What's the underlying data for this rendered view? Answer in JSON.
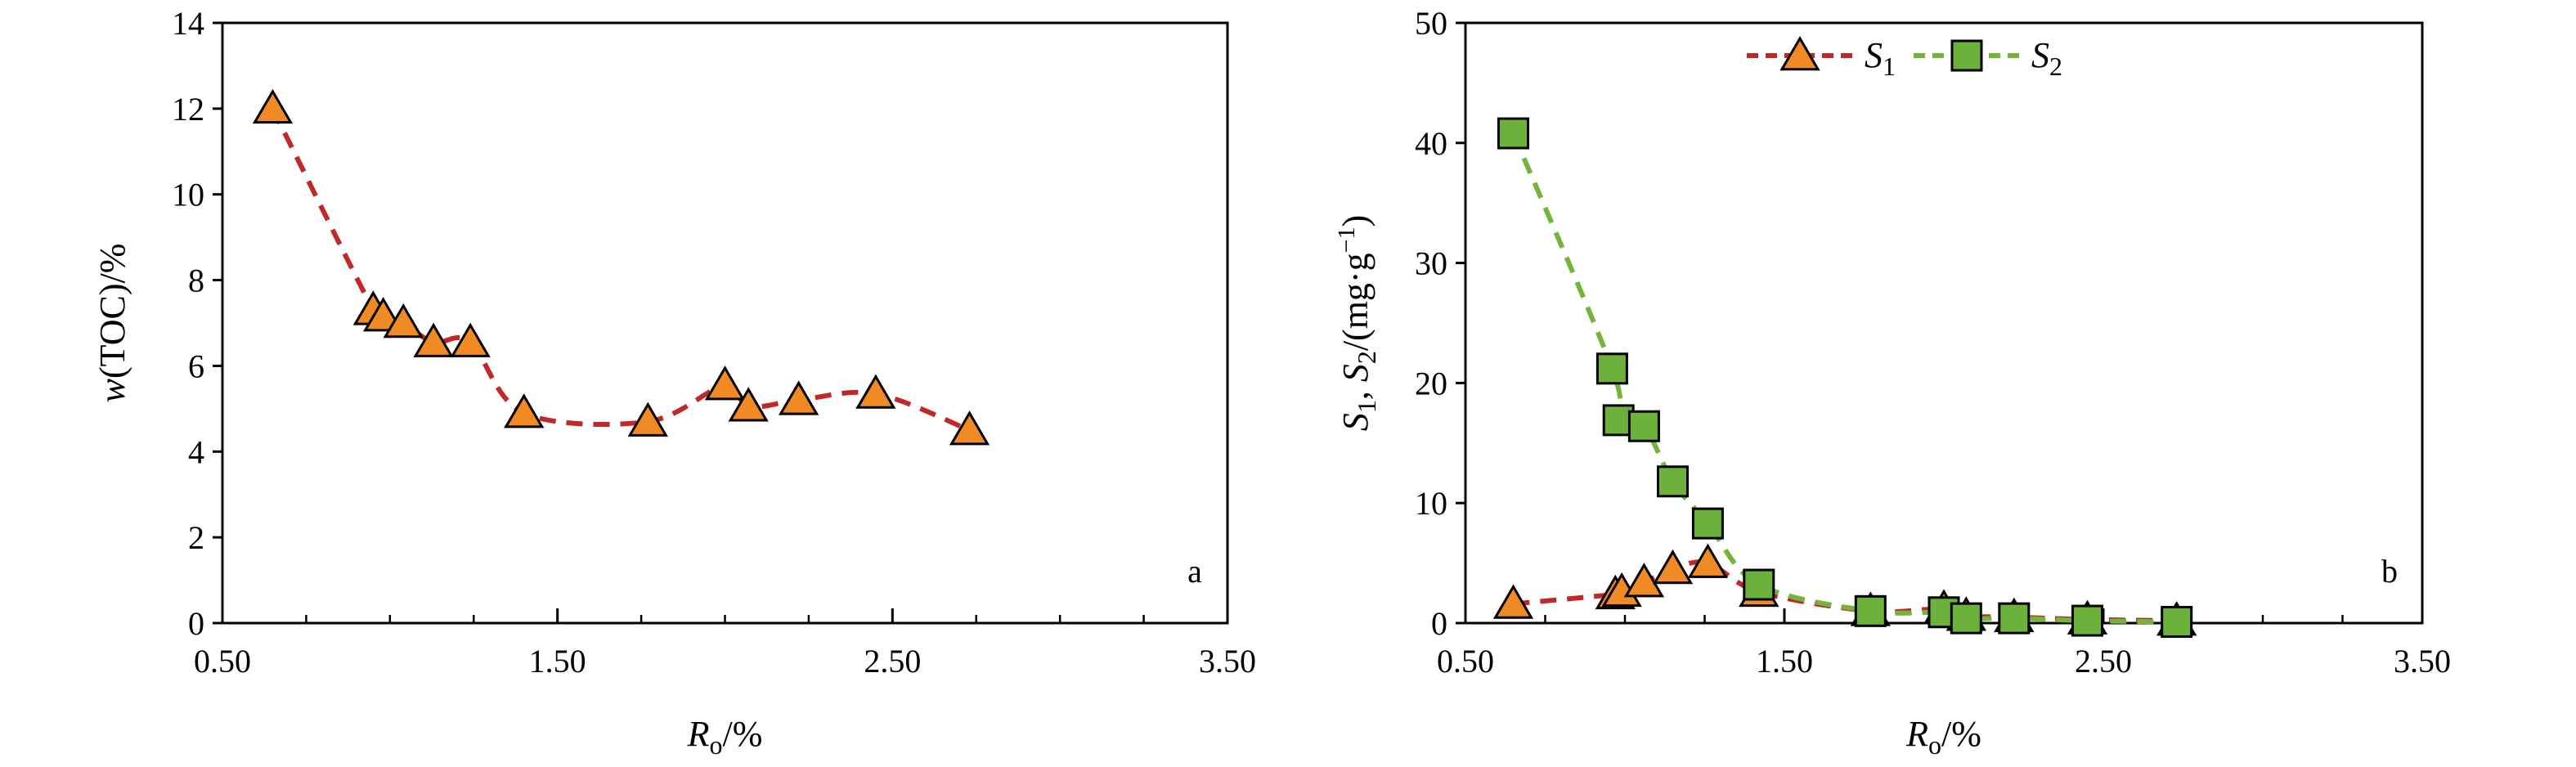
{
  "chart_data": [
    {
      "type": "scatter",
      "panel_label": "a",
      "xlabel": {
        "main": "R",
        "sub": "o",
        "tail": "/%"
      },
      "ylabel": {
        "italic": "w",
        "rest": "(TOC)/%"
      },
      "xlim": [
        0.5,
        3.5
      ],
      "ylim": [
        0,
        14
      ],
      "xticks": [
        "0.50",
        "1.50",
        "2.50",
        "3.50"
      ],
      "yticks": [
        "0",
        "2",
        "4",
        "6",
        "8",
        "10",
        "12",
        "14"
      ],
      "grid": false,
      "series": [
        {
          "marker": "triangle",
          "color": "#f08a24",
          "line_color": "#c0282a",
          "line_style": "dashed-smooth",
          "x": [
            0.65,
            0.95,
            0.98,
            1.04,
            1.13,
            1.24,
            1.4,
            1.77,
            2.0,
            2.07,
            2.22,
            2.45,
            2.73
          ],
          "y": [
            12.0,
            7.3,
            7.15,
            7.0,
            6.55,
            6.55,
            4.9,
            4.7,
            5.55,
            5.05,
            5.2,
            5.35,
            4.5
          ]
        }
      ]
    },
    {
      "type": "scatter",
      "panel_label": "b",
      "xlabel": {
        "main": "R",
        "sub": "o",
        "tail": "/%"
      },
      "ylabel": {
        "s1": "S",
        "s1sub": "1",
        "sep": ", ",
        "s2": "S",
        "s2sub": "2",
        "rest": "/(mg·g",
        "sup": "−1",
        "close": ")"
      },
      "xlim": [
        0.5,
        3.5
      ],
      "ylim": [
        0,
        50
      ],
      "xticks": [
        "0.50",
        "1.50",
        "2.50",
        "3.50"
      ],
      "yticks": [
        "0",
        "10",
        "20",
        "30",
        "40",
        "50"
      ],
      "grid": false,
      "legend_position": "top-center",
      "series": [
        {
          "name": {
            "base": "S",
            "sub": "1"
          },
          "marker": "triangle",
          "color": "#f08a24",
          "line_color": "#c0282a",
          "line_style": "dashed-smooth",
          "x": [
            0.65,
            0.97,
            0.99,
            1.06,
            1.15,
            1.26,
            1.42,
            1.77,
            2.0,
            2.07,
            2.22,
            2.45,
            2.73
          ],
          "y": [
            1.6,
            2.4,
            2.6,
            3.4,
            4.5,
            5.0,
            2.6,
            1.0,
            1.2,
            0.6,
            0.5,
            0.3,
            0.2
          ]
        },
        {
          "name": {
            "base": "S",
            "sub": "2"
          },
          "marker": "square",
          "color": "#6bb13c",
          "line_color": "#72b53a",
          "line_style": "dashed-smooth",
          "x": [
            0.65,
            0.96,
            0.98,
            1.06,
            1.15,
            1.26,
            1.42,
            1.77,
            2.0,
            2.07,
            2.22,
            2.45,
            2.73
          ],
          "y": [
            40.8,
            21.2,
            16.9,
            16.4,
            11.8,
            8.3,
            3.2,
            1.0,
            0.9,
            0.4,
            0.4,
            0.2,
            0.1
          ]
        }
      ]
    }
  ]
}
